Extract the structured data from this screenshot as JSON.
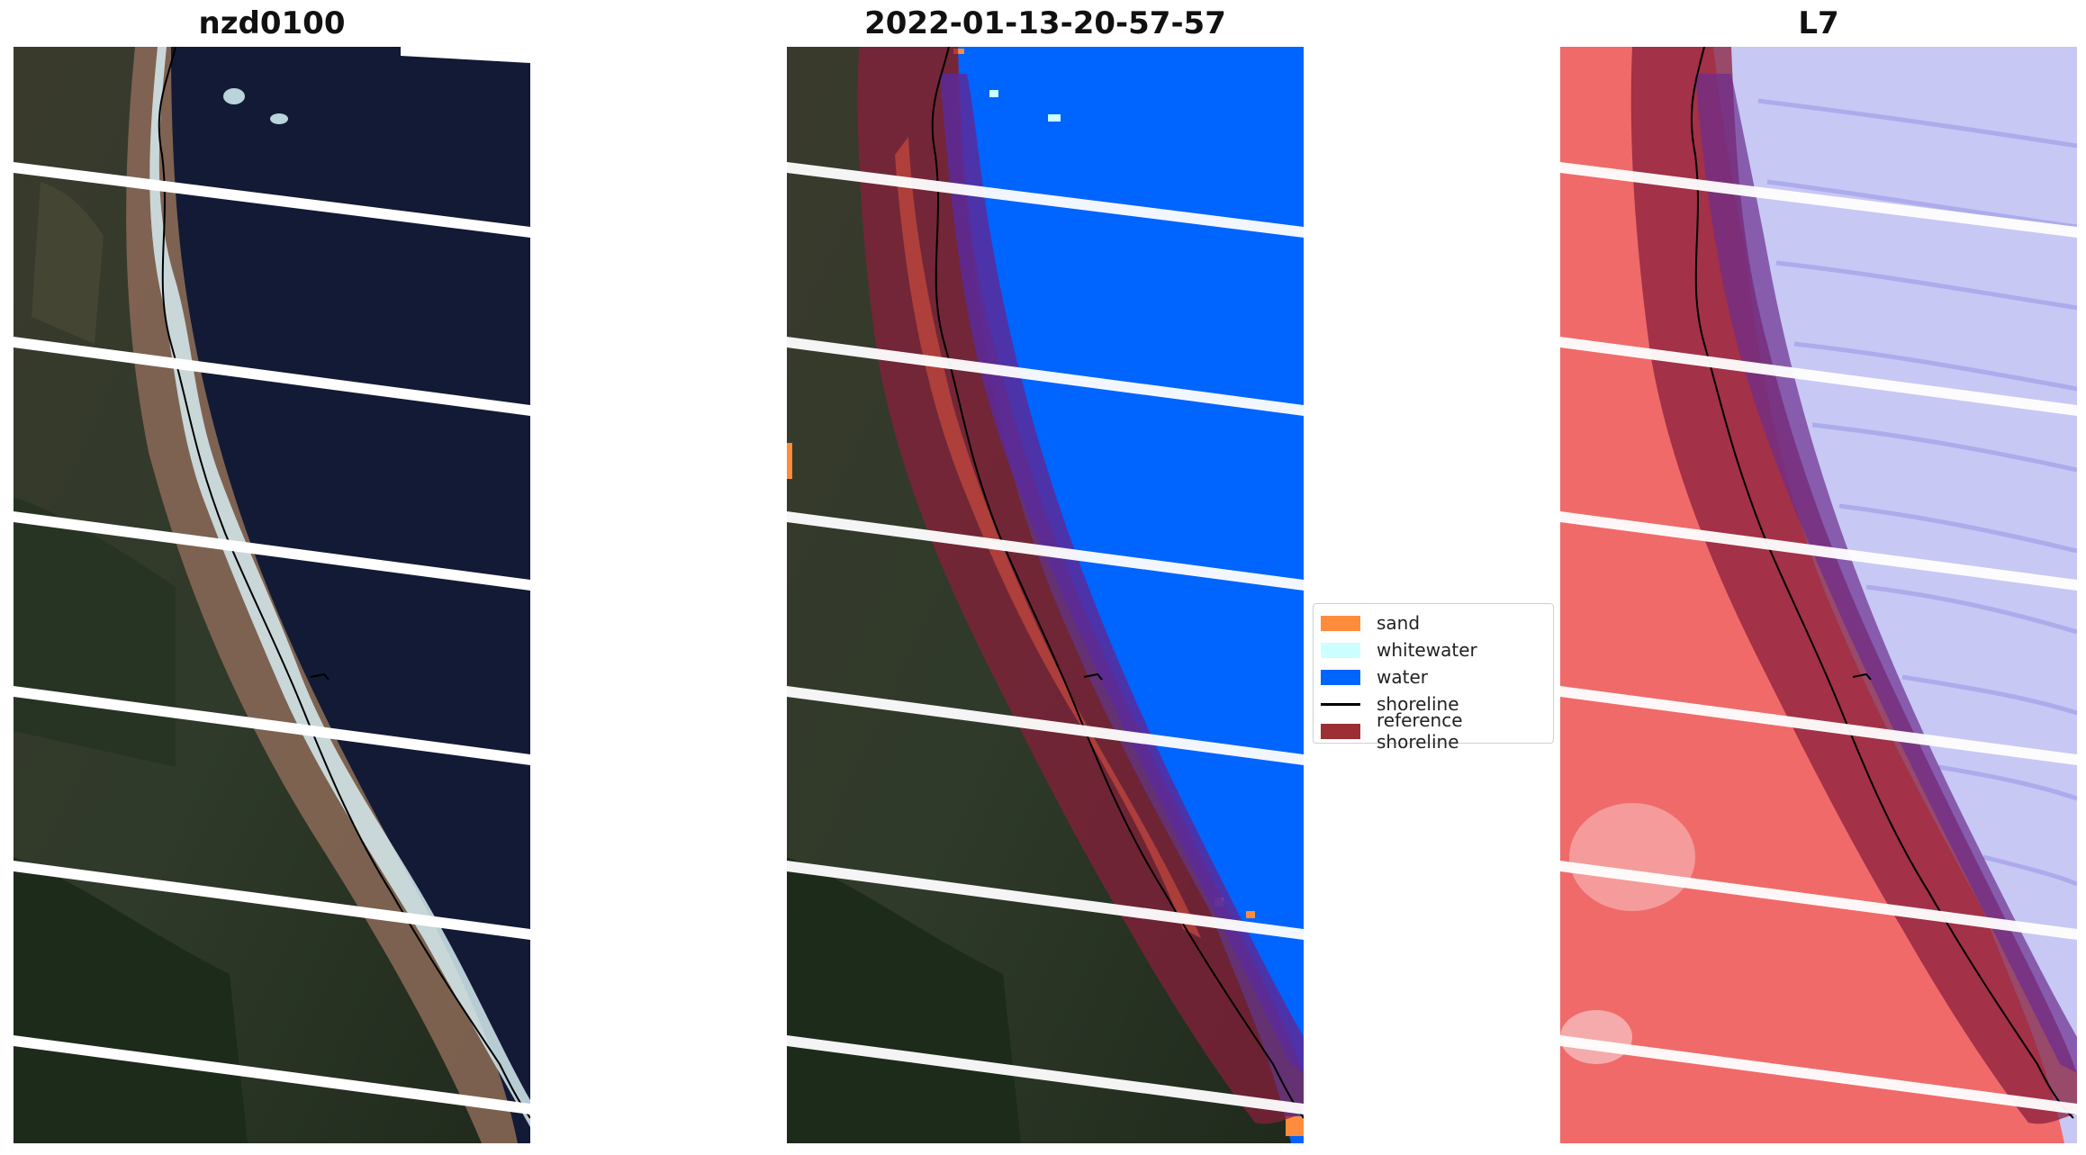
{
  "panels": {
    "left_title": "nzd0100",
    "middle_title": "2022-01-13-20-57-57",
    "right_title": "L7"
  },
  "legend": {
    "items": [
      {
        "label": "sand",
        "color": "#ff8c3a",
        "kind": "patch"
      },
      {
        "label": "whitewater",
        "color": "#ccffff",
        "kind": "patch"
      },
      {
        "label": "water",
        "color": "#0064ff",
        "kind": "patch"
      },
      {
        "label": "shoreline",
        "color": "#000000",
        "kind": "line"
      },
      {
        "label": "reference shoreline",
        "color": "#9b2f33",
        "kind": "patch"
      }
    ]
  },
  "colors": {
    "land_dark": "#2a3324",
    "land_brown": "#5b4638",
    "ocean_dark": "#111a33",
    "surf_white": "#d8eef2",
    "class_water": "#0064ff",
    "class_sand": "#ff8c3a",
    "class_whitewater": "#ccffff",
    "reference_band": "#8a1f3c",
    "index_red": "#f06a6a",
    "index_blue": "#c8c8f4",
    "scan_gap": "#ffffff"
  }
}
